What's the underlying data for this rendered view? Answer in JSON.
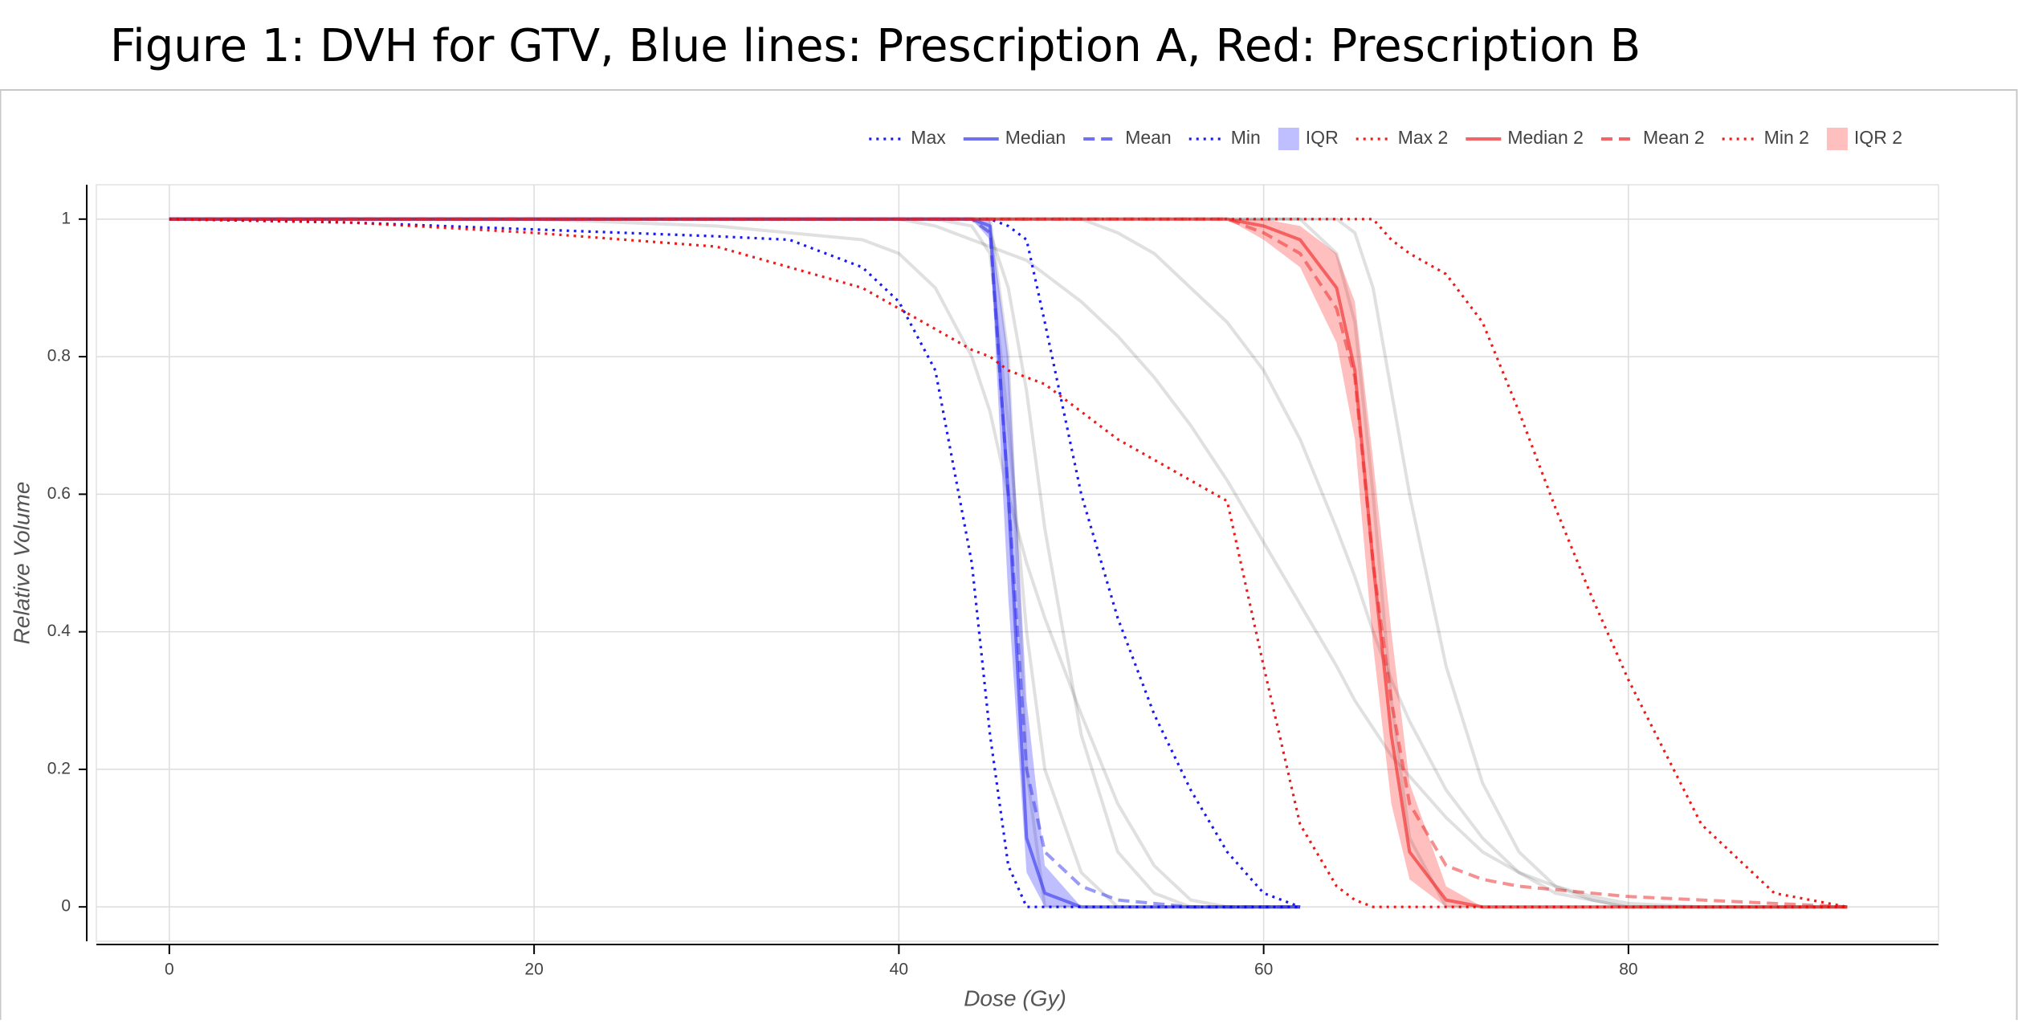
{
  "chart_data": {
    "type": "line",
    "title": "Figure 1: DVH for GTV, Blue lines: Prescription A, Red: Prescription B",
    "x_label": "Dose (Gy)",
    "y_label": "Relative Volume",
    "xlim": [
      -4,
      97
    ],
    "ylim": [
      -0.05,
      1.05
    ],
    "xticks": [
      0,
      20,
      40,
      60,
      80
    ],
    "yticks": [
      0,
      0.2,
      0.4,
      0.6,
      0.8,
      1
    ],
    "grid": true,
    "legend": "top-right",
    "x": [
      0,
      10,
      20,
      30,
      34,
      38,
      40,
      42,
      44,
      45,
      46,
      47,
      48,
      50,
      52,
      54,
      56,
      58,
      60,
      62,
      64,
      65,
      66,
      67,
      68,
      70,
      72,
      74,
      76,
      78,
      80,
      84,
      88,
      92
    ],
    "traces": [
      {
        "color": "#000000",
        "opacity": 0.12,
        "values": [
          1,
          1,
          1,
          1,
          1,
          1,
          1,
          1,
          1,
          1,
          0.8,
          0.2,
          0,
          0,
          0,
          0,
          0,
          0,
          0,
          0,
          null,
          null,
          null,
          null,
          null,
          null,
          null,
          null,
          null,
          null,
          null,
          null,
          null,
          null
        ]
      },
      {
        "color": "#000000",
        "opacity": 0.12,
        "values": [
          1,
          1,
          1,
          1,
          1,
          1,
          1,
          1,
          1,
          0.98,
          0.9,
          0.75,
          0.55,
          0.25,
          0.08,
          0.02,
          0,
          0,
          0,
          0,
          null,
          null,
          null,
          null,
          null,
          null,
          null,
          null,
          null,
          null,
          null,
          null,
          null,
          null
        ]
      },
      {
        "color": "#000000",
        "opacity": 0.12,
        "values": [
          1,
          1,
          1,
          1,
          1,
          1,
          1,
          1,
          0.99,
          0.95,
          0.7,
          0.4,
          0.2,
          0.05,
          0,
          0,
          0,
          0,
          0,
          0,
          null,
          null,
          null,
          null,
          null,
          null,
          null,
          null,
          null,
          null,
          null,
          null,
          null,
          null
        ]
      },
      {
        "color": "#000000",
        "opacity": 0.12,
        "values": [
          1,
          1,
          1,
          0.99,
          0.98,
          0.97,
          0.95,
          0.9,
          0.8,
          0.72,
          0.6,
          0.5,
          0.42,
          0.28,
          0.15,
          0.06,
          0.01,
          0,
          0,
          0,
          null,
          null,
          null,
          null,
          null,
          null,
          null,
          null,
          null,
          null,
          null,
          null,
          null,
          null
        ]
      },
      {
        "color": "#000000",
        "opacity": 0.12,
        "values": [
          1,
          1,
          1,
          1,
          1,
          1,
          1,
          1,
          1,
          1,
          1,
          1,
          1,
          1,
          1,
          1,
          1,
          1,
          1,
          1,
          0.95,
          0.85,
          0.6,
          0.3,
          0.1,
          0,
          0,
          0,
          0,
          0,
          0,
          0,
          0,
          0
        ]
      },
      {
        "color": "#000000",
        "opacity": 0.12,
        "values": [
          1,
          1,
          1,
          1,
          1,
          1,
          1,
          1,
          1,
          1,
          1,
          1,
          1,
          1,
          0.98,
          0.95,
          0.9,
          0.85,
          0.78,
          0.68,
          0.55,
          0.48,
          0.4,
          0.33,
          0.27,
          0.17,
          0.1,
          0.05,
          0.02,
          0.01,
          0,
          0,
          0,
          0
        ]
      },
      {
        "color": "#000000",
        "opacity": 0.12,
        "values": [
          1,
          1,
          1,
          1,
          1,
          1,
          1,
          1,
          1,
          1,
          1,
          1,
          1,
          1,
          1,
          1,
          1,
          1,
          1,
          1,
          1,
          0.98,
          0.9,
          0.75,
          0.6,
          0.35,
          0.18,
          0.08,
          0.03,
          0.01,
          0,
          0,
          0,
          0
        ]
      },
      {
        "color": "#000000",
        "opacity": 0.12,
        "values": [
          1,
          1,
          1,
          1,
          1,
          1,
          1,
          0.99,
          0.97,
          0.96,
          0.95,
          0.94,
          0.92,
          0.88,
          0.83,
          0.77,
          0.7,
          0.62,
          0.53,
          0.44,
          0.35,
          0.3,
          0.26,
          0.22,
          0.19,
          0.13,
          0.08,
          0.05,
          0.03,
          0.015,
          0.005,
          0,
          0,
          0
        ]
      }
    ],
    "series": [
      {
        "name": "Max",
        "style": "dotted",
        "color": "#0000ee",
        "opacity": 0.9,
        "values": [
          1,
          1,
          1,
          1,
          1,
          1,
          1,
          1,
          1,
          1,
          0.99,
          0.97,
          0.85,
          0.6,
          0.42,
          0.28,
          0.17,
          0.08,
          0.02,
          0,
          null,
          null,
          null,
          null,
          null,
          null,
          null,
          null,
          null,
          null,
          null,
          null,
          null,
          null
        ]
      },
      {
        "name": "Median",
        "style": "solid",
        "color": "#3333ee",
        "opacity": 0.6,
        "values": [
          1,
          1,
          1,
          1,
          1,
          1,
          1,
          1,
          1,
          0.99,
          0.6,
          0.1,
          0.02,
          0,
          0,
          0,
          0,
          0,
          0,
          0,
          null,
          null,
          null,
          null,
          null,
          null,
          null,
          null,
          null,
          null,
          null,
          null,
          null,
          null
        ]
      },
      {
        "name": "Mean",
        "style": "dashed",
        "color": "#3333ee",
        "opacity": 0.5,
        "values": [
          1,
          1,
          1,
          1,
          1,
          1,
          1,
          1,
          1,
          0.98,
          0.6,
          0.2,
          0.08,
          0.03,
          0.01,
          0.005,
          0,
          0,
          0,
          0,
          null,
          null,
          null,
          null,
          null,
          null,
          null,
          null,
          null,
          null,
          null,
          null,
          null,
          null
        ]
      },
      {
        "name": "Min",
        "style": "dotted",
        "color": "#0000ee",
        "opacity": 0.9,
        "values": [
          1,
          0.995,
          0.985,
          0.975,
          0.97,
          0.93,
          0.88,
          0.78,
          0.5,
          0.25,
          0.06,
          0,
          0,
          0,
          0,
          0,
          0,
          0,
          0,
          0,
          null,
          null,
          null,
          null,
          null,
          null,
          null,
          null,
          null,
          null,
          null,
          null,
          null,
          null
        ]
      },
      {
        "name": "IQR",
        "style": "band",
        "color": "#0000ff",
        "opacity": 0.25,
        "lower": [
          1,
          1,
          1,
          1,
          1,
          1,
          1,
          1,
          1,
          0.97,
          0.45,
          0.05,
          0,
          0,
          0,
          0,
          0,
          0,
          0,
          0,
          null,
          null,
          null,
          null,
          null,
          null,
          null,
          null,
          null,
          null,
          null,
          null,
          null,
          null
        ],
        "upper": [
          1,
          1,
          1,
          1,
          1,
          1,
          1,
          1,
          1,
          1,
          0.8,
          0.3,
          0.06,
          0,
          0,
          0,
          0,
          0,
          0,
          0,
          null,
          null,
          null,
          null,
          null,
          null,
          null,
          null,
          null,
          null,
          null,
          null,
          null,
          null
        ]
      },
      {
        "name": "Max 2",
        "style": "dotted",
        "color": "#ee0000",
        "opacity": 0.9,
        "values": [
          1,
          1,
          1,
          1,
          1,
          1,
          1,
          1,
          1,
          1,
          1,
          1,
          1,
          1,
          1,
          1,
          1,
          1,
          1,
          1,
          1,
          1,
          1,
          0.97,
          0.95,
          0.92,
          0.85,
          0.72,
          0.58,
          0.45,
          0.33,
          0.12,
          0.02,
          0
        ]
      },
      {
        "name": "Median 2",
        "style": "solid",
        "color": "#ee2222",
        "opacity": 0.6,
        "values": [
          1,
          1,
          1,
          1,
          1,
          1,
          1,
          1,
          1,
          1,
          1,
          1,
          1,
          1,
          1,
          1,
          1,
          1,
          0.99,
          0.97,
          0.9,
          0.78,
          0.5,
          0.25,
          0.08,
          0.01,
          0,
          0,
          0,
          0,
          0,
          0,
          0,
          0
        ]
      },
      {
        "name": "Mean 2",
        "style": "dashed",
        "color": "#ee2222",
        "opacity": 0.5,
        "values": [
          1,
          1,
          1,
          1,
          1,
          1,
          1,
          1,
          1,
          1,
          1,
          1,
          1,
          1,
          1,
          1,
          1,
          1,
          0.98,
          0.95,
          0.87,
          0.77,
          0.5,
          0.3,
          0.15,
          0.06,
          0.04,
          0.03,
          0.025,
          0.02,
          0.015,
          0.01,
          0.005,
          0
        ]
      },
      {
        "name": "Min 2",
        "style": "dotted",
        "color": "#ee0000",
        "opacity": 0.9,
        "values": [
          1,
          0.995,
          0.98,
          0.96,
          0.93,
          0.9,
          0.87,
          0.84,
          0.81,
          0.8,
          0.78,
          0.77,
          0.76,
          0.72,
          0.68,
          0.65,
          0.62,
          0.59,
          0.35,
          0.12,
          0.03,
          0.01,
          0,
          0,
          0,
          0,
          0,
          0,
          0,
          0,
          0,
          0,
          0,
          0
        ]
      },
      {
        "name": "IQR 2",
        "style": "band",
        "color": "#ff0000",
        "opacity": 0.25,
        "lower": [
          1,
          1,
          1,
          1,
          1,
          1,
          1,
          1,
          1,
          1,
          1,
          1,
          1,
          1,
          1,
          1,
          1,
          1,
          0.97,
          0.93,
          0.82,
          0.68,
          0.38,
          0.15,
          0.04,
          0,
          0,
          0,
          0,
          0,
          0,
          0,
          0,
          0
        ],
        "upper": [
          1,
          1,
          1,
          1,
          1,
          1,
          1,
          1,
          1,
          1,
          1,
          1,
          1,
          1,
          1,
          1,
          1,
          1,
          1,
          0.99,
          0.95,
          0.88,
          0.65,
          0.4,
          0.18,
          0.03,
          0,
          0,
          0,
          0,
          0,
          0,
          0,
          0
        ]
      }
    ]
  }
}
